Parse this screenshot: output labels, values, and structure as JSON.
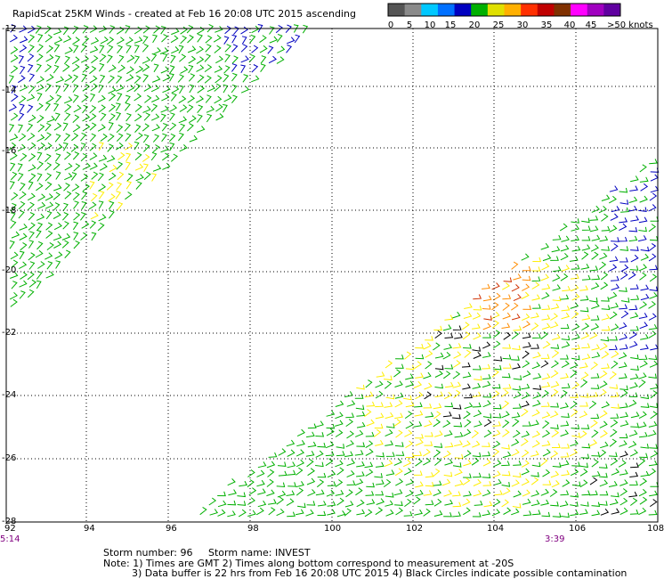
{
  "title": "RapidScat 25KM Winds - created at Feb 16 20:08 UTC 2015 ascending",
  "legend": {
    "labels": [
      "0",
      "5",
      "10",
      "15",
      "20",
      "25",
      "30",
      "35",
      "40",
      "45",
      ">50 knots"
    ],
    "colors": [
      "#555555",
      "#8a8a8a",
      "#00c8ff",
      "#0070ff",
      "#0000c0",
      "#00b000",
      "#e0e000",
      "#ffb000",
      "#ff3000",
      "#c00000",
      "#803000",
      "#ff00ff",
      "#a000c0",
      "#6000a0"
    ]
  },
  "axes": {
    "x_labels": [
      "92",
      "94",
      "96",
      "98",
      "100",
      "102",
      "104",
      "106",
      "108"
    ],
    "y_labels": [
      "-12",
      "-14",
      "-16",
      "-18",
      "-20",
      "-22",
      "-24",
      "-26",
      "-28"
    ],
    "time_left": "5:14",
    "time_right": "3:39"
  },
  "footer": {
    "storm_number_label": "Storm number: 96",
    "storm_name_label": "Storm name: INVEST",
    "note_line1": "Note: 1) Times are GMT  2) Times along bottom correspond to measurement at -20S",
    "note_line2": "3) Data buffer is 22 hrs from Feb 16 20:08 UTC 2015  4) Black Circles indicate possible contamination"
  }
}
